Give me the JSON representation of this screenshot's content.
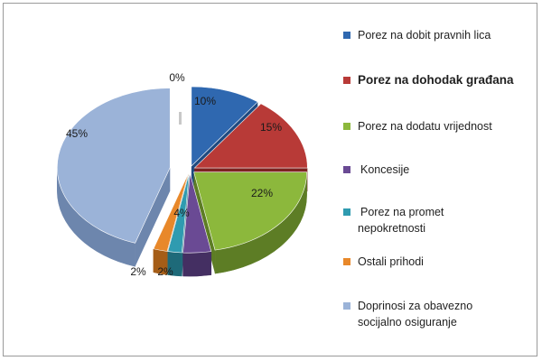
{
  "chart_data": {
    "type": "pie",
    "style": "3d-exploded",
    "title": "",
    "legend_position": "right",
    "slices": [
      {
        "label": "Porez na dobit pravnih lica",
        "value": 10,
        "value_label": "10%",
        "color": "#2f68b0",
        "side_color": "#1f4a80"
      },
      {
        "label": "Porez na dohodak građana",
        "value": 15,
        "value_label": "15%",
        "color": "#b83a37",
        "side_color": "#7d2321"
      },
      {
        "label": "Porez na dodatu vrijednost",
        "value": 22,
        "value_label": "22%",
        "color": "#8cb83c",
        "side_color": "#5d7d25"
      },
      {
        "label": "Koncesije",
        "value": 4,
        "value_label": "4%",
        "color": "#6a4a94",
        "side_color": "#442f62"
      },
      {
        "label": "Porez na promet nepokretnosti",
        "value": 2,
        "value_label": "2%",
        "color": "#2f9bb0",
        "side_color": "#1e6a79"
      },
      {
        "label": "Ostali prihodi",
        "value": 2,
        "value_label": "2%",
        "color": "#e8882a",
        "side_color": "#a55d17"
      },
      {
        "label": "Doprinosi za obavezno socijalno osiguranje",
        "value": 45,
        "value_label": "45%",
        "color": "#9bb3d8",
        "side_color": "#6d86ad"
      }
    ],
    "zero_label": "0%"
  },
  "legend": {
    "items": [
      {
        "label_line1": "Porez na dobit pravnih lica",
        "label_line2": ""
      },
      {
        "label_line1": "Porez na dohodak građana",
        "label_line2": ""
      },
      {
        "label_line1": "Porez na dodatu vrijednost",
        "label_line2": ""
      },
      {
        "label_line1": "Koncesije",
        "label_line2": ""
      },
      {
        "label_line1": "Porez na promet",
        "label_line2": "nepokretnosti"
      },
      {
        "label_line1": "Ostali prihodi",
        "label_line2": ""
      },
      {
        "label_line1": "Doprinosi za obavezno",
        "label_line2": "socijalno osiguranje"
      }
    ]
  }
}
